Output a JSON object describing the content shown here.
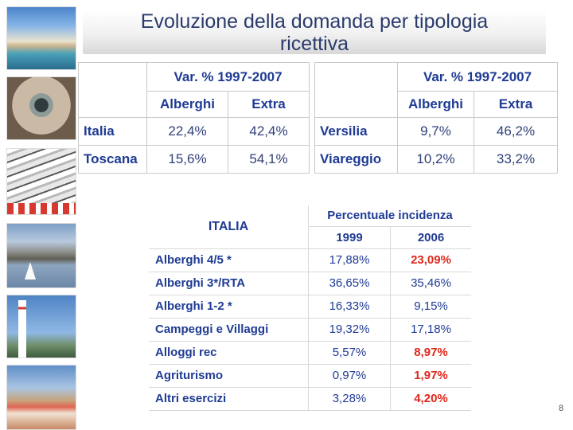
{
  "title": "Evoluzione della domanda per tipologia ricettiva",
  "title_lines": [
    "Evoluzione della domanda per tipologia",
    "ricettiva"
  ],
  "photos": [
    "beach-photo",
    "building-photo",
    "umbrellas-photo",
    "mountains-sailboat-photo",
    "lighthouse-photo",
    "flags-beach-photo"
  ],
  "table1": {
    "header": "Var. % 1997-2007",
    "col1": "Alberghi",
    "col2": "Extra",
    "rows": [
      {
        "label": "Italia",
        "alberghi": "22,4%",
        "extra": "42,4%"
      },
      {
        "label": "Toscana",
        "alberghi": "15,6%",
        "extra": "54,1%"
      }
    ]
  },
  "table2": {
    "header": "Var. % 1997-2007",
    "col1": "Alberghi",
    "col2": "Extra",
    "rows": [
      {
        "label": "Versilia",
        "alberghi": "9,7%",
        "extra": "46,2%"
      },
      {
        "label": "Viareggio",
        "alberghi": "10,2%",
        "extra": "33,2%"
      }
    ]
  },
  "table3": {
    "region": "ITALIA",
    "header": "Percentuale incidenza",
    "year1": "1999",
    "year2": "2006",
    "rows": [
      {
        "label": "Alberghi 4/5 *",
        "v1999": "17,88%",
        "v2006": "23,09%",
        "highlight": true
      },
      {
        "label": "Alberghi 3*/RTA",
        "v1999": "36,65%",
        "v2006": "35,46%",
        "highlight": false
      },
      {
        "label": "Alberghi 1-2 *",
        "v1999": "16,33%",
        "v2006": "9,15%",
        "highlight": false
      },
      {
        "label": "Campeggi e Villaggi",
        "v1999": "19,32%",
        "v2006": "17,18%",
        "highlight": false
      },
      {
        "label": "Alloggi rec",
        "v1999": "5,57%",
        "v2006": "8,97%",
        "highlight": true
      },
      {
        "label": "Agriturismo",
        "v1999": "0,97%",
        "v2006": "1,97%",
        "highlight": true
      },
      {
        "label": "Altri esercizi",
        "v1999": "3,28%",
        "v2006": "4,20%",
        "highlight": true
      }
    ]
  },
  "page_number": "8",
  "colors": {
    "title": "#2a3b6b",
    "label_blue": "#1f3b93",
    "highlight_red": "#e0261b"
  }
}
